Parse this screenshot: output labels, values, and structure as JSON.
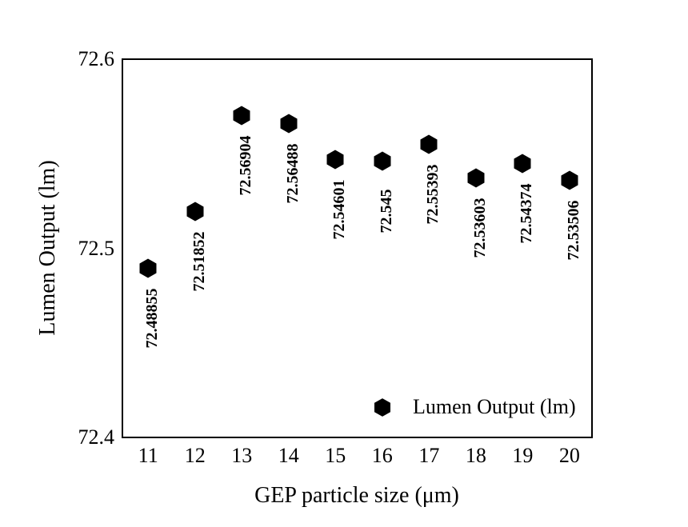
{
  "figure": {
    "background": "#ffffff",
    "frame_color": "#000000",
    "text_color": "#000000"
  },
  "chart_data": {
    "type": "scatter",
    "title": "",
    "xlabel": "GEP particle size (μm)",
    "ylabel": "Lumen Output (lm)",
    "x": [
      11,
      12,
      13,
      14,
      15,
      16,
      17,
      18,
      19,
      20
    ],
    "series": [
      {
        "name": "Lumen Output (lm)",
        "marker": "filled-hexagon",
        "color": "#000000",
        "values": [
          72.48855,
          72.51852,
          72.56904,
          72.56488,
          72.54601,
          72.545,
          72.55393,
          72.53603,
          72.54374,
          72.53506
        ]
      }
    ],
    "point_labels": [
      "72.48855",
      "72.51852",
      "72.56904",
      "72.56488",
      "72.54601",
      "72.545",
      "72.55393",
      "72.53603",
      "72.54374",
      "72.53506"
    ],
    "point_label_style": "bold, rotated 90°, below marker",
    "xlim": [
      10.45,
      20.48
    ],
    "ylim": [
      72.4,
      72.6
    ],
    "xticks": [
      {
        "value": 11,
        "label": "11"
      },
      {
        "value": 12,
        "label": "12"
      },
      {
        "value": 13,
        "label": "13"
      },
      {
        "value": 14,
        "label": "14"
      },
      {
        "value": 15,
        "label": "15"
      },
      {
        "value": 16,
        "label": "16"
      },
      {
        "value": 17,
        "label": "17"
      },
      {
        "value": 18,
        "label": "18"
      },
      {
        "value": 19,
        "label": "19"
      },
      {
        "value": 20,
        "label": "20"
      }
    ],
    "yticks": [
      {
        "value": 72.6,
        "label": "72.6"
      },
      {
        "value": 72.5,
        "label": "72.5"
      },
      {
        "value": 72.4,
        "label": "72.4"
      }
    ],
    "grid": false,
    "tick_marks": false,
    "legend": {
      "position": "inside-bottom-right",
      "entries": [
        {
          "label": "Lumen Output (lm)",
          "marker": "filled-hexagon",
          "color": "#000000"
        }
      ]
    }
  }
}
